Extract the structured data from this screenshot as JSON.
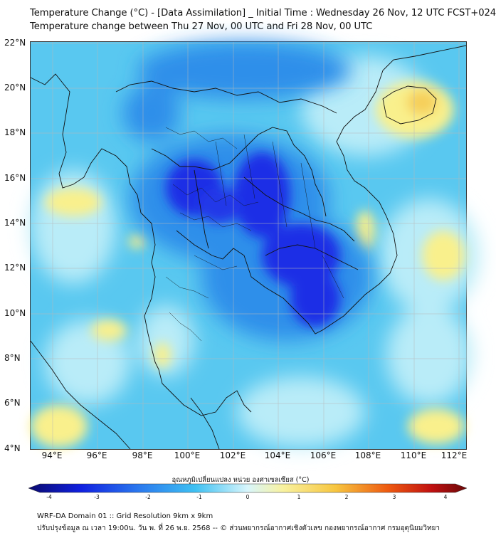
{
  "header": {
    "title_line1": "Temperature Change (°C) - [Data Assimilation] _ Initial Time : Wednesday 26 Nov, 12 UTC FCST+024",
    "title_line2": "Temperature change between Thu 27 Nov, 00 UTC and Fri 28 Nov, 00 UTC"
  },
  "map": {
    "lat_labels": [
      "22°N",
      "20°N",
      "18°N",
      "16°N",
      "14°N",
      "12°N",
      "10°N",
      "8°N",
      "6°N",
      "4°N"
    ],
    "lon_labels": [
      "94°E",
      "96°E",
      "98°E",
      "100°E",
      "102°E",
      "104°E",
      "106°E",
      "108°E",
      "110°E",
      "112°E"
    ],
    "extent": {
      "lon_min": 93,
      "lon_max": 112.3,
      "lat_min": 4,
      "lat_max": 22.2
    },
    "fill_colors": {
      "deep_blue": "#1a2ee6",
      "blue": "#2f8fea",
      "light_blue": "#59c8f0",
      "pale_cyan": "#b9ecf8",
      "yellow": "#f9f08c",
      "orange_yellow": "#f6cf5a"
    }
  },
  "colorbar": {
    "label": "อุณหภูมิเปลี่ยนแปลง หน่วย องศาเซลเซียส (°C)",
    "ticks": [
      "-4",
      "-3",
      "-2",
      "-1",
      "0",
      "1",
      "2",
      "3",
      "4"
    ],
    "range": [
      -4,
      4
    ]
  },
  "footer": {
    "line1": "WRF-DA Domain 01 :: Grid Resolution 9km x 9km",
    "line2": "ปรับปรุงข้อมูล ณ เวลา 19:00น. วัน พ. ที่ 26 พ.ย. 2568 -- © ส่วนพยากรณ์อากาศเชิงตัวเลข กองพยากรณ์อากาศ กรมอุตุนิยมวิทยา"
  }
}
